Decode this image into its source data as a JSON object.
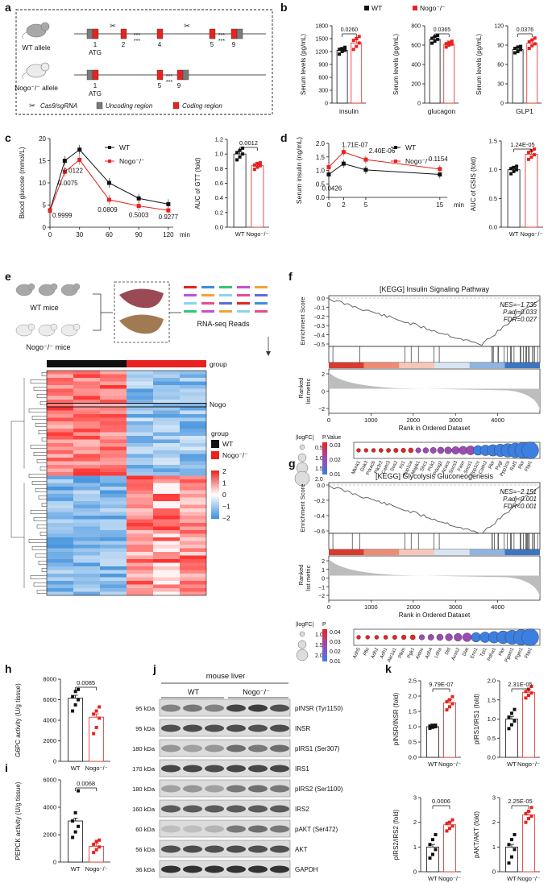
{
  "colors": {
    "wt": "#111111",
    "nogo": "#e8231f",
    "gray": "#7a7a7a",
    "heat_hi": "#e8231f",
    "heat_lo": "#3d8fdc"
  },
  "panel_letters": [
    "a",
    "b",
    "c",
    "d",
    "e",
    "f",
    "g",
    "h",
    "i",
    "j",
    "k"
  ],
  "panel_a": {
    "wt_allele": "WT allele",
    "nogo_allele": "Nogo⁻/⁻ allele",
    "exon_labels_wt": [
      "1",
      "2",
      "4",
      "5",
      "9"
    ],
    "exon_labels_ko": [
      "1",
      "5",
      "9"
    ],
    "atg": "ATG",
    "stars": "***",
    "legend": [
      "Cas9/sgRNA",
      "Uncoding region",
      "Coding region"
    ]
  },
  "legend_groups": {
    "wt": "WT",
    "nogo": "Nogo⁻/⁻"
  },
  "panel_b": {
    "ylabel": "Serum levels (pg/mL)",
    "charts": [
      {
        "name": "insulin",
        "ticks": [
          "0",
          "300",
          "600",
          "900",
          "1200",
          "1500",
          "1800"
        ],
        "ymax": 1800,
        "wt": 1230,
        "nogo": 1400,
        "p": "0.0260",
        "wt_pts": [
          1140,
          1200,
          1230,
          1250,
          1270,
          1300
        ],
        "nogo_pts": [
          1250,
          1320,
          1400,
          1460,
          1500,
          1550
        ]
      },
      {
        "name": "glucagon",
        "ticks": [
          "0",
          "200",
          "400",
          "600",
          "800"
        ],
        "ymax": 800,
        "wt": 660,
        "nogo": 610,
        "p": "0.0365",
        "wt_pts": [
          620,
          640,
          660,
          670,
          690,
          700
        ],
        "nogo_pts": [
          580,
          600,
          610,
          615,
          625,
          640
        ]
      },
      {
        "name": "GLP1",
        "ticks": [
          "0",
          "30",
          "60",
          "90",
          "120"
        ],
        "ymax": 120,
        "wt": 83,
        "nogo": 93,
        "p": "0.0376",
        "wt_pts": [
          78,
          80,
          83,
          85,
          87,
          88
        ],
        "nogo_pts": [
          85,
          89,
          92,
          95,
          98,
          101
        ]
      }
    ]
  },
  "panel_c": {
    "ylabel": "Blood glucose (mmol/L)",
    "xlabel": "min",
    "xticks": [
      "0",
      "30",
      "60",
      "90",
      "120"
    ],
    "yticks": [
      "0",
      "5",
      "10",
      "15",
      "20"
    ],
    "x": [
      0,
      15,
      30,
      60,
      90,
      120
    ],
    "wt": [
      3.8,
      15.0,
      17.5,
      10.0,
      6.5,
      5.2
    ],
    "nogo": [
      3.7,
      12.5,
      15.2,
      6.2,
      4.8,
      3.8
    ],
    "pvals": [
      "0.9999",
      "0.0075",
      "0.0122",
      "0.0809",
      "0.5003",
      "0.9277"
    ],
    "auc_ylabel": "AUC of GTT (fold)",
    "auc_ticks": [
      "0.0",
      "0.2",
      "0.4",
      "0.6",
      "0.8",
      "1.0",
      "1.2"
    ],
    "auc_wt": 1.0,
    "auc_nogo": 0.84,
    "auc_p": "0.0012"
  },
  "panel_d": {
    "ylabel": "Serum insulin (ng/mL)",
    "xlabel": "min",
    "xticks": [
      "0",
      "2",
      "5",
      "15"
    ],
    "yticks": [
      "0.0",
      "0.5",
      "1.0",
      "1.5",
      "2.0"
    ],
    "x": [
      0,
      2,
      5,
      15
    ],
    "wt": [
      0.85,
      1.25,
      1.02,
      0.85
    ],
    "nogo": [
      1.12,
      1.68,
      1.4,
      1.05
    ],
    "pvals": [
      "0.0426",
      "1.71E-07",
      "2.40E-06",
      "0.1154"
    ],
    "auc_ylabel": "AUC of GSIS (fold)",
    "auc_ticks": [
      "0.0",
      "0.5",
      "1.0",
      "1.5"
    ],
    "auc_wt": 1.0,
    "auc_nogo": 1.27,
    "auc_p": "1.24E-05"
  },
  "panel_e": {
    "wt_mice": "WT mice",
    "nogo_mice": "Nogo⁻/⁻ mice",
    "reads": "RNA-seq Reads",
    "group_label": "group",
    "row_label": "Nogo",
    "legend_title": "group",
    "legend_wt": "WT",
    "legend_nogo": "Nogo⁻/⁻",
    "scale_ticks": [
      "2",
      "1",
      "0",
      "−1",
      "−2"
    ]
  },
  "panel_f": {
    "title": "[KEGG] Insulin Signaling Pathway",
    "ylabel1": "Enrichment Score",
    "ylabel2": "Ranked list metric",
    "stats": [
      "NES=−1.735",
      "P.adj=0.033",
      "FDR=0.027"
    ],
    "es_ticks": [
      "0.0",
      "−0.1",
      "−0.2",
      "−0.3",
      "−0.4",
      "−0.5"
    ],
    "rank_ticks": [
      "2",
      "0",
      "−2"
    ],
    "xticks": [
      "0",
      "1000",
      "2000",
      "3000",
      "4000"
    ],
    "xlabel": "Rank in Ordered Dataset",
    "logfc": "|logFC|",
    "size_ticks": [
      "0.5",
      "1.0",
      "1.5",
      "2.0"
    ],
    "pv_title": "P.Value",
    "pv_ticks": [
      "0.03",
      "0.02",
      "0.01"
    ],
    "genes": [
      "Mknk1",
      "Gsk3",
      "Prkacb",
      "Pik3r2",
      "Calm3",
      "Sos2",
      "Irs1",
      "Ppp1ca",
      "Mapk1",
      "Shc1",
      "Pck2",
      "Prkag2",
      "Acaca",
      "Socs3",
      "Fasn",
      "Socs1",
      "Ppp1cc",
      "Calm2",
      "Pklr",
      "Pygl",
      "Ppp1ca",
      "Raf1",
      "Pklr",
      "Fbp1"
    ]
  },
  "panel_g": {
    "title": "[KEGG] Glycolysis Gluconeogenesis",
    "ylabel1": "Enrichment Score",
    "ylabel2": "Ranked list metric",
    "stats": [
      "NES=−2.151",
      "P.adj<0.001",
      "FDR<0.001"
    ],
    "es_ticks": [
      "0.0",
      "−0.2",
      "−0.4",
      "−0.6"
    ],
    "rank_ticks": [
      "2",
      "1",
      "0",
      "−1",
      "−2"
    ],
    "xticks": [
      "0",
      "1000",
      "2000",
      "3000",
      "4000"
    ],
    "xlabel": "Rank in Ordered Dataset",
    "logfc": "|logFC|",
    "size_ticks": [
      "1.0",
      "1.5",
      "2.0"
    ],
    "pv_title": "P",
    "pv_ticks": [
      "0.04",
      "0.03",
      "0.02",
      "0.01"
    ],
    "genes": [
      "Adh5",
      "Pfkl",
      "Adh2",
      "Adh1",
      "Akr1a1",
      "Pfkm",
      "Pgk1",
      "Aldoc",
      "Adh4",
      "Ldha",
      "Dld",
      "Acss2",
      "Dlat",
      "Eno1",
      "Tpi1",
      "Pdha1",
      "Pklr",
      "Pgam1",
      "Pgm1",
      "Fbp1"
    ]
  },
  "panel_h": {
    "ylabel": "G6PC activity (U/g tissue)",
    "ticks": [
      "0",
      "2000",
      "4000",
      "6000",
      "8000"
    ],
    "ymax": 8000,
    "wt": 6150,
    "nogo": 4300,
    "p": "0.0085",
    "wt_pts": [
      4900,
      5500,
      6000,
      6300,
      6800,
      7000
    ],
    "nogo_pts": [
      2700,
      3300,
      4200,
      4600,
      4900,
      5300
    ]
  },
  "panel_i": {
    "ylabel": "PEPCK activity (U/g tissue)",
    "ticks": [
      "0",
      "2000",
      "4000",
      "6000"
    ],
    "ymax": 6000,
    "wt": 3000,
    "nogo": 1150,
    "p": "0.0068",
    "wt_pts": [
      1800,
      2200,
      2600,
      3000,
      3600,
      5200
    ],
    "nogo_pts": [
      700,
      900,
      1100,
      1300,
      1500,
      1600
    ]
  },
  "panel_j": {
    "title": "mouse liver",
    "wt": "WT",
    "nogo": "Nogo⁻/⁻",
    "rows": [
      {
        "kda": "95 kDa",
        "label": "pINSR (Tyr1150)"
      },
      {
        "kda": "95 kDa",
        "label": "INSR"
      },
      {
        "kda": "180 kDa",
        "label": "pIRS1 (Ser307)"
      },
      {
        "kda": "170 kDa",
        "label": "IRS1"
      },
      {
        "kda": "180 kDa",
        "label": "pIRS2 (Ser1100)"
      },
      {
        "kda": "160 kDa",
        "label": "IRS2"
      },
      {
        "kda": "60 kDa",
        "label": "pAKT (Ser472)"
      },
      {
        "kda": "56 kDa",
        "label": "AKT"
      },
      {
        "kda": "36 kDa",
        "label": "GAPDH"
      }
    ]
  },
  "panel_k": {
    "charts": [
      {
        "ylabel": "pINSR/INSR (fold)",
        "ticks": [
          "0.0",
          "0.5",
          "1.0",
          "1.5",
          "2.0",
          "2.5"
        ],
        "ymax": 2.5,
        "wt": 1.0,
        "nogo": 1.78,
        "p": "9.79E-07",
        "wt_pts": [
          0.95,
          0.98,
          1.0,
          1.02,
          1.03,
          1.05
        ],
        "nogo_pts": [
          1.55,
          1.65,
          1.75,
          1.82,
          1.88,
          1.98
        ]
      },
      {
        "ylabel": "pIRS1/IRS1 (fold)",
        "ticks": [
          "0.0",
          "0.5",
          "1.0",
          "1.5",
          "2.0"
        ],
        "ymax": 2.0,
        "wt": 1.0,
        "nogo": 1.7,
        "p": "2.31E-05",
        "wt_pts": [
          0.75,
          0.85,
          0.95,
          1.05,
          1.15,
          1.25
        ],
        "nogo_pts": [
          1.55,
          1.62,
          1.68,
          1.72,
          1.78,
          1.85
        ]
      },
      {
        "ylabel": "pIRS2/IRS2 (fold)",
        "ticks": [
          "0",
          "1",
          "2",
          "3"
        ],
        "ymax": 3,
        "wt": 1.0,
        "nogo": 1.9,
        "p": "0.0006",
        "wt_pts": [
          0.55,
          0.7,
          0.9,
          1.1,
          1.3,
          1.5
        ],
        "nogo_pts": [
          1.65,
          1.75,
          1.85,
          1.95,
          2.0,
          2.1
        ]
      },
      {
        "ylabel": "pAKT/AKT (fold)",
        "ticks": [
          "0",
          "1",
          "2",
          "3"
        ],
        "ymax": 3,
        "wt": 1.0,
        "nogo": 2.3,
        "p": "2.25E-05",
        "wt_pts": [
          0.35,
          0.6,
          0.9,
          1.1,
          1.3,
          1.5
        ],
        "nogo_pts": [
          2.0,
          2.15,
          2.25,
          2.35,
          2.45,
          2.6
        ]
      }
    ]
  }
}
